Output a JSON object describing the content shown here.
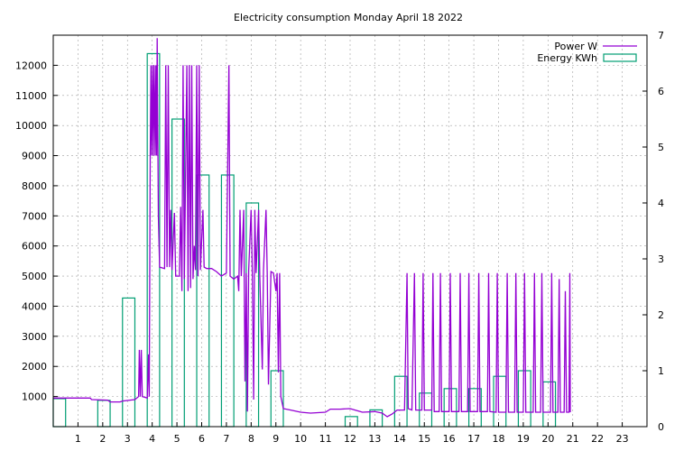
{
  "chart_data": {
    "type": "line",
    "title": "Electricity consumption Monday April 18 2022",
    "xlabel": "",
    "ylabel": "",
    "y2label": "",
    "xlim": [
      0,
      24
    ],
    "ylim": [
      0,
      13000
    ],
    "y2lim": [
      0,
      7
    ],
    "x_ticks": [
      1,
      2,
      3,
      4,
      5,
      6,
      7,
      8,
      9,
      10,
      11,
      12,
      13,
      14,
      15,
      16,
      17,
      18,
      19,
      20,
      21,
      22,
      23
    ],
    "y_ticks": [
      1000,
      2000,
      3000,
      4000,
      5000,
      6000,
      7000,
      8000,
      9000,
      10000,
      11000,
      12000
    ],
    "y2_ticks": [
      0,
      1,
      2,
      3,
      4,
      5,
      6,
      7
    ],
    "grid": true,
    "legend_position": "top-right",
    "colors": {
      "power": "#9400d3",
      "energy": "#009e73"
    },
    "series": [
      {
        "name": "Power W",
        "axis": "y",
        "style": "line",
        "points": [
          [
            0,
            950
          ],
          [
            1.5,
            950
          ],
          [
            1.55,
            900
          ],
          [
            2.2,
            880
          ],
          [
            2.3,
            820
          ],
          [
            2.7,
            820
          ],
          [
            2.8,
            850
          ],
          [
            3.3,
            900
          ],
          [
            3.45,
            1000
          ],
          [
            3.48,
            2550
          ],
          [
            3.52,
            1000
          ],
          [
            3.56,
            2550
          ],
          [
            3.6,
            1000
          ],
          [
            3.8,
            950
          ],
          [
            3.85,
            2400
          ],
          [
            3.88,
            1000
          ],
          [
            3.92,
            9000
          ],
          [
            3.95,
            12000
          ],
          [
            3.98,
            9000
          ],
          [
            4.02,
            12000
          ],
          [
            4.05,
            9000
          ],
          [
            4.08,
            12000
          ],
          [
            4.12,
            9000
          ],
          [
            4.15,
            12000
          ],
          [
            4.18,
            9000
          ],
          [
            4.2,
            12900
          ],
          [
            4.25,
            7000
          ],
          [
            4.3,
            5300
          ],
          [
            4.5,
            5250
          ],
          [
            4.55,
            12000
          ],
          [
            4.6,
            5300
          ],
          [
            4.65,
            12000
          ],
          [
            4.7,
            5300
          ],
          [
            4.75,
            7200
          ],
          [
            4.8,
            5200
          ],
          [
            4.9,
            7100
          ],
          [
            4.95,
            5000
          ],
          [
            5.1,
            5000
          ],
          [
            5.15,
            7300
          ],
          [
            5.2,
            4500
          ],
          [
            5.25,
            12000
          ],
          [
            5.3,
            4900
          ],
          [
            5.4,
            12000
          ],
          [
            5.45,
            4500
          ],
          [
            5.5,
            12000
          ],
          [
            5.55,
            4600
          ],
          [
            5.6,
            12000
          ],
          [
            5.65,
            4900
          ],
          [
            5.7,
            6000
          ],
          [
            5.75,
            5200
          ],
          [
            5.8,
            12000
          ],
          [
            5.85,
            5000
          ],
          [
            5.9,
            12000
          ],
          [
            5.95,
            5200
          ],
          [
            6.05,
            7200
          ],
          [
            6.1,
            5300
          ],
          [
            6.2,
            5250
          ],
          [
            6.4,
            5250
          ],
          [
            6.6,
            5150
          ],
          [
            6.8,
            5000
          ],
          [
            7.0,
            5100
          ],
          [
            7.1,
            12000
          ],
          [
            7.15,
            5000
          ],
          [
            7.3,
            4900
          ],
          [
            7.45,
            5000
          ],
          [
            7.5,
            4500
          ],
          [
            7.55,
            7200
          ],
          [
            7.6,
            5000
          ],
          [
            7.7,
            7200
          ],
          [
            7.75,
            1500
          ],
          [
            7.8,
            5100
          ],
          [
            7.85,
            500
          ],
          [
            7.9,
            5200
          ],
          [
            8.0,
            7200
          ],
          [
            8.05,
            5000
          ],
          [
            8.1,
            900
          ],
          [
            8.15,
            7200
          ],
          [
            8.2,
            5100
          ],
          [
            8.3,
            7200
          ],
          [
            8.35,
            5000
          ],
          [
            8.45,
            1900
          ],
          [
            8.5,
            5200
          ],
          [
            8.6,
            7200
          ],
          [
            8.65,
            5000
          ],
          [
            8.7,
            1400
          ],
          [
            8.8,
            5150
          ],
          [
            8.9,
            5100
          ],
          [
            9.0,
            4500
          ],
          [
            9.05,
            5100
          ],
          [
            9.1,
            1800
          ],
          [
            9.15,
            5100
          ],
          [
            9.2,
            1000
          ],
          [
            9.3,
            600
          ],
          [
            9.6,
            550
          ],
          [
            10.0,
            480
          ],
          [
            10.4,
            450
          ],
          [
            11.0,
            480
          ],
          [
            11.2,
            580
          ],
          [
            11.6,
            580
          ],
          [
            12.0,
            600
          ],
          [
            12.2,
            550
          ],
          [
            12.5,
            480
          ],
          [
            13.0,
            500
          ],
          [
            13.3,
            450
          ],
          [
            13.5,
            330
          ],
          [
            13.7,
            420
          ],
          [
            13.9,
            550
          ],
          [
            14.2,
            550
          ],
          [
            14.3,
            5100
          ],
          [
            14.35,
            600
          ],
          [
            14.5,
            550
          ],
          [
            14.6,
            5100
          ],
          [
            14.65,
            550
          ],
          [
            14.9,
            550
          ],
          [
            14.95,
            5100
          ],
          [
            15.0,
            550
          ],
          [
            15.3,
            550
          ],
          [
            15.35,
            5100
          ],
          [
            15.4,
            500
          ],
          [
            15.6,
            500
          ],
          [
            15.65,
            5100
          ],
          [
            15.7,
            500
          ],
          [
            16.0,
            500
          ],
          [
            16.05,
            5100
          ],
          [
            16.1,
            500
          ],
          [
            16.4,
            500
          ],
          [
            16.45,
            5100
          ],
          [
            16.5,
            500
          ],
          [
            16.75,
            500
          ],
          [
            16.8,
            5100
          ],
          [
            16.85,
            500
          ],
          [
            17.15,
            500
          ],
          [
            17.2,
            5100
          ],
          [
            17.25,
            500
          ],
          [
            17.55,
            500
          ],
          [
            17.6,
            5100
          ],
          [
            17.65,
            500
          ],
          [
            17.9,
            480
          ],
          [
            17.95,
            5100
          ],
          [
            18.0,
            480
          ],
          [
            18.3,
            480
          ],
          [
            18.35,
            5100
          ],
          [
            18.4,
            480
          ],
          [
            18.65,
            480
          ],
          [
            18.7,
            5100
          ],
          [
            18.75,
            480
          ],
          [
            19.0,
            480
          ],
          [
            19.05,
            5100
          ],
          [
            19.1,
            480
          ],
          [
            19.4,
            480
          ],
          [
            19.45,
            5100
          ],
          [
            19.5,
            480
          ],
          [
            19.7,
            480
          ],
          [
            19.75,
            5100
          ],
          [
            19.8,
            480
          ],
          [
            20.1,
            480
          ],
          [
            20.15,
            5100
          ],
          [
            20.2,
            480
          ],
          [
            20.4,
            480
          ],
          [
            20.45,
            4900
          ],
          [
            20.5,
            480
          ],
          [
            20.65,
            480
          ],
          [
            20.7,
            4500
          ],
          [
            20.75,
            480
          ],
          [
            20.85,
            480
          ],
          [
            20.88,
            5100
          ],
          [
            20.9,
            480
          ]
        ]
      },
      {
        "name": "Energy KWh",
        "axis": "y2",
        "style": "steps",
        "bars": [
          [
            0.0,
            0.5,
            0.5
          ],
          [
            1.0,
            1.5,
            0.0
          ],
          [
            1.8,
            2.3,
            0.47
          ],
          [
            2.8,
            3.3,
            2.3
          ],
          [
            3.8,
            4.3,
            6.67
          ],
          [
            4.8,
            5.3,
            5.5
          ],
          [
            5.8,
            6.3,
            4.5
          ],
          [
            6.8,
            7.3,
            4.5
          ],
          [
            7.8,
            8.3,
            4.0
          ],
          [
            8.8,
            9.3,
            1.0
          ],
          [
            11.8,
            12.3,
            0.18
          ],
          [
            12.8,
            13.3,
            0.3
          ],
          [
            13.8,
            14.3,
            0.9
          ],
          [
            14.8,
            15.3,
            0.6
          ],
          [
            15.8,
            16.3,
            0.68
          ],
          [
            16.8,
            17.3,
            0.68
          ],
          [
            17.8,
            18.3,
            0.9
          ],
          [
            18.8,
            19.3,
            1.0
          ],
          [
            19.8,
            20.3,
            0.8
          ]
        ]
      }
    ]
  }
}
